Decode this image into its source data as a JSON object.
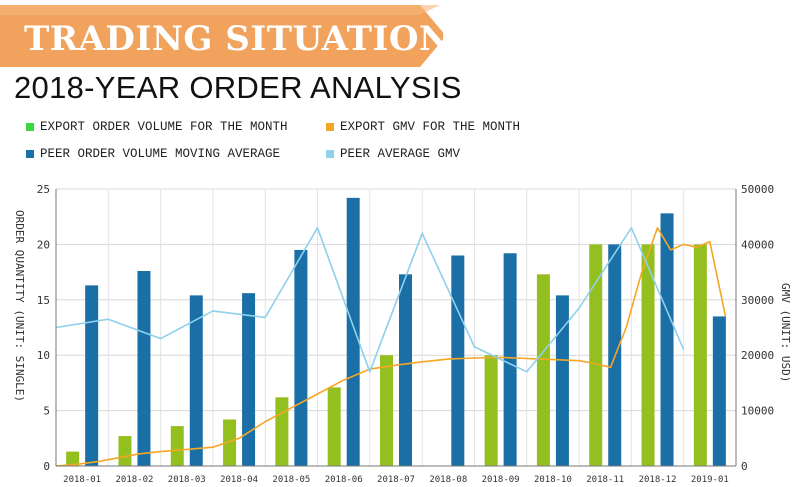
{
  "banner": {
    "title": "TRADING SITUATION",
    "color": "#f1a35e"
  },
  "heading": "2018-YEAR ORDER ANALYSIS",
  "legend": [
    {
      "label": "EXPORT ORDER VOLUME FOR THE MONTH",
      "color": "#3dd63d"
    },
    {
      "label": "EXPORT GMV FOR THE MONTH",
      "color": "#f5a623"
    },
    {
      "label": "PEER ORDER VOLUME MOVING AVERAGE",
      "color": "#1a6fa6"
    },
    {
      "label": "PEER AVERAGE GMV",
      "color": "#8fd0ec"
    }
  ],
  "chart_data": {
    "type": "bar",
    "ylabel": "ORDER QUANTITY (UNIT: SINGLE)",
    "y2label": "GMV (UNIT: USD)",
    "ylim": [
      0,
      25
    ],
    "y2lim": [
      0,
      50000
    ],
    "yticks": [
      "0",
      "5",
      "10",
      "15",
      "20",
      "25"
    ],
    "y2ticks": [
      "0",
      "10000",
      "20000",
      "30000",
      "40000",
      "50000"
    ],
    "grid": true,
    "categories": [
      "2018-01",
      "2018-02",
      "2018-03",
      "2018-04",
      "2018-05",
      "2018-06",
      "2018-07",
      "2018-08",
      "2018-09",
      "2018-10",
      "2018-11",
      "2018-12",
      "2019-01"
    ],
    "series": [
      {
        "name": "EXPORT ORDER VOLUME FOR THE MONTH",
        "type": "bar",
        "axis": "left",
        "color": "#93c01f",
        "values": [
          1.3,
          2.7,
          3.6,
          4.2,
          6.2,
          7.1,
          10,
          null,
          10,
          17.3,
          20,
          20,
          20
        ]
      },
      {
        "name": "PEER ORDER VOLUME MOVING AVERAGE",
        "type": "bar",
        "axis": "left",
        "color": "#1a6fa6",
        "values": [
          16.3,
          17.6,
          15.4,
          15.6,
          19.5,
          24.2,
          17.3,
          19,
          19.2,
          15.4,
          20,
          22.8,
          13.5
        ]
      },
      {
        "name": "EXPORT GMV FOR THE MONTH",
        "type": "line",
        "axis": "right",
        "color": "#f5a623",
        "x": [
          0,
          0.4,
          0.8,
          1.2,
          1.6,
          2,
          2.5,
          3,
          3.5,
          4,
          4.5,
          5,
          5.5,
          6,
          6.5,
          7,
          7.5,
          8,
          8.5,
          9,
          9.5,
          10,
          10.3,
          10.6,
          10.9,
          11.2,
          11.5,
          11.75,
          12,
          12.25,
          12.5,
          12.8
        ],
        "values": [
          0,
          300,
          800,
          1500,
          2200,
          2600,
          3000,
          3400,
          5000,
          8000,
          10500,
          13000,
          15500,
          17500,
          18200,
          18800,
          19300,
          19500,
          19600,
          19400,
          19200,
          19000,
          18500,
          17800,
          25000,
          35000,
          43000,
          39000,
          40000,
          39500,
          40500,
          27000
        ]
      },
      {
        "name": "PEER AVERAGE GMV",
        "type": "line",
        "axis": "right",
        "color": "#8fd0ec",
        "x": [
          0,
          1,
          2,
          3,
          4,
          5,
          6,
          7,
          8,
          9,
          10,
          11,
          12,
          13
        ],
        "values": [
          25000,
          26500,
          23000,
          28000,
          26800,
          43000,
          17000,
          42000,
          21500,
          17000,
          28500,
          43000,
          21000,
          null
        ]
      }
    ]
  }
}
